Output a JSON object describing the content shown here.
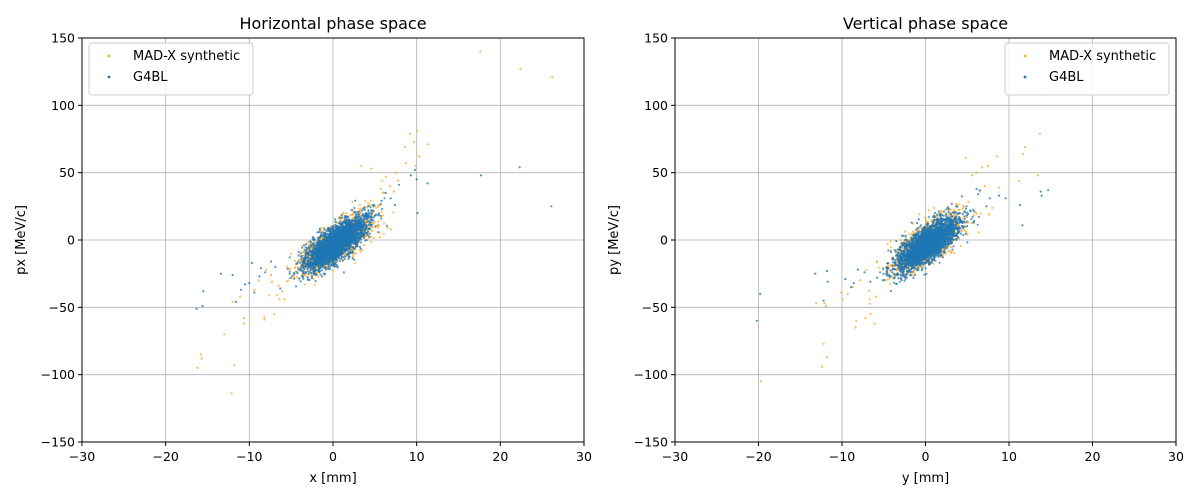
{
  "chart_data": [
    {
      "type": "scatter",
      "title": "Horizontal phase space",
      "xlabel": "x [mm]",
      "ylabel": "px [MeV/c]",
      "xlim": [
        -30,
        30
      ],
      "ylim": [
        -150,
        150
      ],
      "xticks": [
        -30,
        -20,
        -10,
        0,
        10,
        20,
        30
      ],
      "yticks": [
        -150,
        -100,
        -50,
        0,
        50,
        100,
        150
      ],
      "xtick_labels": [
        "−30",
        "−20",
        "−10",
        "0",
        "10",
        "20",
        "30"
      ],
      "ytick_labels": [
        "−150",
        "−100",
        "−50",
        "0",
        "50",
        "100",
        "150"
      ],
      "grid": true,
      "legend_position": "upper-left",
      "series": [
        {
          "name": "MAD-X synthetic",
          "color": "#ffa827",
          "core": {
            "x_mean": 0.3,
            "x_std": 2.1,
            "y_mean": -3,
            "y_std": 10.5,
            "corr": 0.75,
            "count": 1400
          },
          "outliers": [
            [
              -16.2,
              -95
            ],
            [
              -15.8,
              -85
            ],
            [
              -15.7,
              -88
            ],
            [
              -11.8,
              -93
            ],
            [
              -12.1,
              -114
            ],
            [
              -13.0,
              -70
            ],
            [
              -10.6,
              -58
            ],
            [
              -10.6,
              -62
            ],
            [
              -8.2,
              -57
            ],
            [
              -8.2,
              -59
            ],
            [
              -7.0,
              -55
            ],
            [
              -6.4,
              -44
            ],
            [
              -8.9,
              -30
            ],
            [
              -8.0,
              -22
            ],
            [
              -6.1,
              -38
            ],
            [
              -5.8,
              -44
            ],
            [
              -12.0,
              -46
            ],
            [
              -11.1,
              -42
            ],
            [
              -9.4,
              -37
            ],
            [
              -7.4,
              -26
            ],
            [
              -7.3,
              -31
            ],
            [
              -6.5,
              -34
            ],
            [
              17.6,
              140
            ],
            [
              22.4,
              127
            ],
            [
              26.2,
              121
            ],
            [
              10.1,
              81
            ],
            [
              9.2,
              79
            ],
            [
              9.7,
              73
            ],
            [
              11.4,
              71
            ],
            [
              8.6,
              69
            ],
            [
              8.7,
              57
            ],
            [
              9.9,
              55
            ],
            [
              10.3,
              62
            ],
            [
              7.8,
              44
            ],
            [
              7.5,
              50
            ],
            [
              6.3,
              47
            ],
            [
              6.8,
              40
            ],
            [
              5.9,
              44
            ],
            [
              7.3,
              36
            ],
            [
              6.1,
              35
            ],
            [
              5.7,
              38
            ],
            [
              3.4,
              55
            ],
            [
              4.6,
              53
            ],
            [
              6.9,
              8
            ],
            [
              5.6,
              2
            ]
          ]
        },
        {
          "name": "G4BL",
          "color": "#1f77b4",
          "core": {
            "x_mean": 0.3,
            "x_std": 1.8,
            "y_mean": -3,
            "y_std": 9.5,
            "corr": 0.75,
            "count": 2800
          },
          "outliers": [
            [
              -16.3,
              -51
            ],
            [
              -15.5,
              -38
            ],
            [
              -15.6,
              -49
            ],
            [
              -13.4,
              -25
            ],
            [
              -12.0,
              -26
            ],
            [
              -11.6,
              -46
            ],
            [
              -11.0,
              -37
            ],
            [
              -10.5,
              -33
            ],
            [
              -10.0,
              -32
            ],
            [
              -9.7,
              -17
            ],
            [
              -9.4,
              -39
            ],
            [
              -8.8,
              -27
            ],
            [
              -8.6,
              -21
            ],
            [
              -8.1,
              -24
            ],
            [
              -7.4,
              -16
            ],
            [
              -6.9,
              -20
            ],
            [
              -6.3,
              -36
            ],
            [
              26.1,
              25
            ],
            [
              22.3,
              54
            ],
            [
              17.7,
              48
            ],
            [
              11.3,
              42
            ],
            [
              10.1,
              20
            ],
            [
              10.0,
              45
            ],
            [
              9.3,
              48
            ],
            [
              9.8,
              52
            ],
            [
              7.9,
              41
            ],
            [
              7.4,
              26
            ],
            [
              6.9,
              31
            ],
            [
              6.3,
              35
            ],
            [
              5.8,
              29
            ]
          ]
        }
      ]
    },
    {
      "type": "scatter",
      "title": "Vertical phase space",
      "xlabel": "y [mm]",
      "ylabel": "py [MeV/c]",
      "xlim": [
        -30,
        30
      ],
      "ylim": [
        -150,
        150
      ],
      "xticks": [
        -30,
        -20,
        -10,
        0,
        10,
        20,
        30
      ],
      "yticks": [
        -150,
        -100,
        -50,
        0,
        50,
        100,
        150
      ],
      "xtick_labels": [
        "−30",
        "−20",
        "−10",
        "0",
        "10",
        "20",
        "30"
      ],
      "ytick_labels": [
        "−150",
        "−100",
        "−50",
        "0",
        "50",
        "100",
        "150"
      ],
      "grid": true,
      "legend_position": "upper-right",
      "series": [
        {
          "name": "MAD-X synthetic",
          "color": "#ffa827",
          "core": {
            "x_mean": 0.2,
            "x_std": 2.1,
            "y_mean": -3,
            "y_std": 10.5,
            "corr": 0.75,
            "count": 1400
          },
          "outliers": [
            [
              -19.7,
              -105
            ],
            [
              -12.4,
              -94
            ],
            [
              -12.2,
              -77
            ],
            [
              -11.8,
              -87
            ],
            [
              -13.1,
              -47
            ],
            [
              -12.1,
              -47
            ],
            [
              -11.9,
              -49
            ],
            [
              -8.3,
              -60
            ],
            [
              -8.4,
              -65
            ],
            [
              -7.2,
              -58
            ],
            [
              -6.6,
              -55
            ],
            [
              -6.1,
              -62
            ],
            [
              -9.3,
              -40
            ],
            [
              -8.7,
              -35
            ],
            [
              -7.8,
              -30
            ],
            [
              -6.7,
              -44
            ],
            [
              -5.9,
              -42
            ],
            [
              -10.1,
              -39
            ],
            [
              -9.9,
              -44
            ],
            [
              14.5,
              108
            ],
            [
              13.7,
              79
            ],
            [
              11.9,
              69
            ],
            [
              11.7,
              64
            ],
            [
              8.6,
              62
            ],
            [
              4.8,
              61
            ],
            [
              13.5,
              48
            ],
            [
              11.2,
              44
            ],
            [
              8.8,
              39
            ],
            [
              7.5,
              55
            ],
            [
              6.8,
              54
            ],
            [
              6.1,
              50
            ],
            [
              5.6,
              48
            ],
            [
              7.1,
              40
            ],
            [
              6.5,
              36
            ],
            [
              7.6,
              19
            ],
            [
              8.0,
              24
            ]
          ]
        },
        {
          "name": "G4BL",
          "color": "#1f77b4",
          "core": {
            "x_mean": 0.2,
            "x_std": 1.8,
            "y_mean": -3,
            "y_std": 9.5,
            "corr": 0.75,
            "count": 2800
          },
          "outliers": [
            [
              -20.2,
              -60
            ],
            [
              -19.8,
              -40
            ],
            [
              -12.2,
              -45
            ],
            [
              -11.8,
              -23
            ],
            [
              -13.2,
              -25
            ],
            [
              -11.7,
              -31
            ],
            [
              -9.6,
              -29
            ],
            [
              -8.9,
              -35
            ],
            [
              -8.6,
              -32
            ],
            [
              -8.1,
              -22
            ],
            [
              -7.3,
              -24
            ],
            [
              -6.6,
              -31
            ],
            [
              -5.8,
              -28
            ],
            [
              14.7,
              37
            ],
            [
              13.8,
              36
            ],
            [
              13.9,
              33
            ],
            [
              11.6,
              11
            ],
            [
              11.3,
              26
            ],
            [
              9.6,
              31
            ],
            [
              8.8,
              33
            ],
            [
              7.3,
              25
            ],
            [
              7.7,
              31
            ],
            [
              6.5,
              37
            ],
            [
              6.3,
              34
            ]
          ]
        }
      ]
    }
  ]
}
